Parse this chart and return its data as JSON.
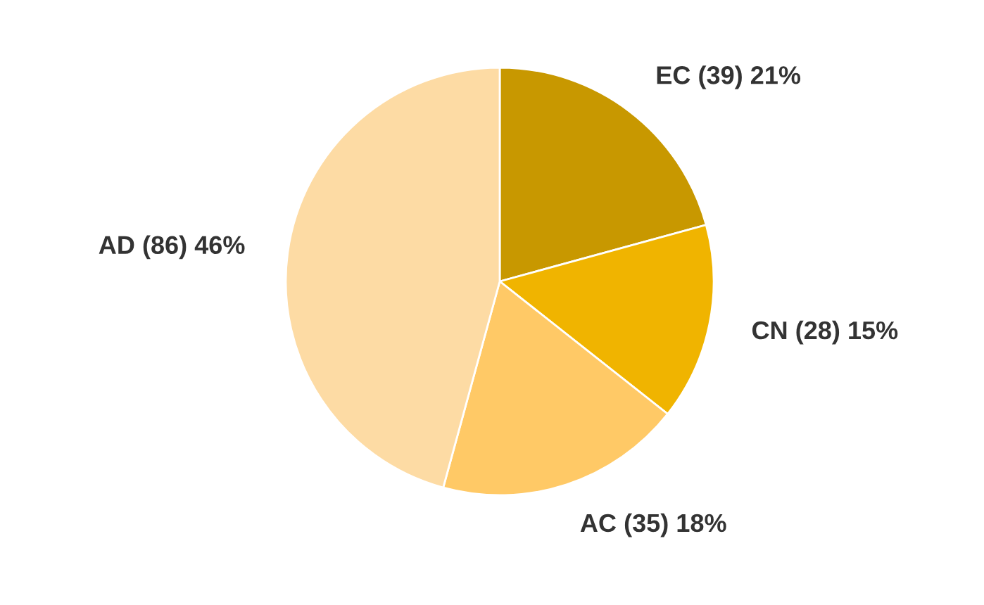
{
  "chart_data": {
    "type": "pie",
    "categories": [
      "EC",
      "CN",
      "AC",
      "AD"
    ],
    "values": [
      39,
      28,
      35,
      86
    ],
    "value_labels": [
      "(39) 21%",
      "(28) 15%",
      "(35) 18%",
      "(86) 46%"
    ],
    "colors": [
      "#c89800",
      "#f0b400",
      "#ffc966",
      "#fddba4"
    ]
  }
}
